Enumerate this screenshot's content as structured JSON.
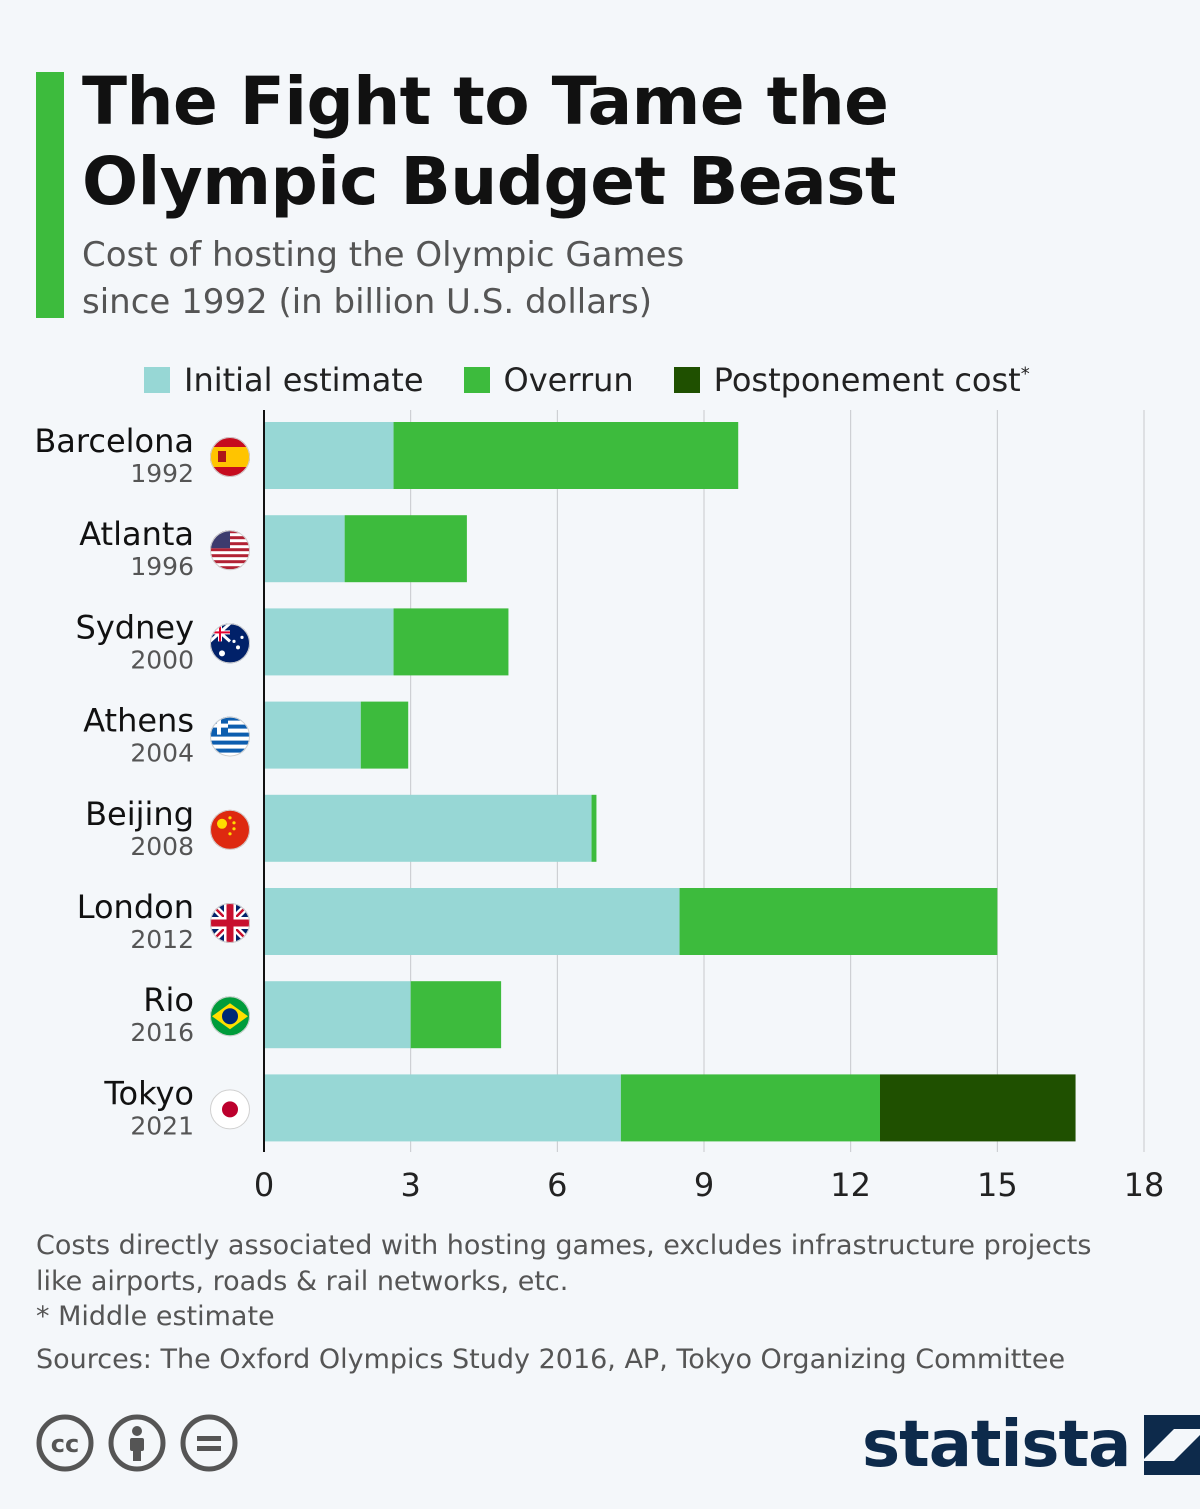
{
  "title": {
    "line1": "The Fight to Tame the",
    "line2": "Olympic Budget Beast"
  },
  "subtitle": {
    "line1": "Cost of hosting the Olympic Games",
    "line2": "since 1992 (in billion U.S. dollars)"
  },
  "colors": {
    "initial": "#97d7d5",
    "overrun": "#3dbb3d",
    "postponement": "#1f5000",
    "accent": "#3dbb3d",
    "brand": "#0d2a4b"
  },
  "legend": {
    "initial": "Initial estimate",
    "overrun": "Overrun",
    "postponement": "Postponement cost",
    "postponement_mark": "*"
  },
  "chart_data": {
    "type": "bar",
    "orientation": "horizontal",
    "stacked": true,
    "categories": [
      {
        "city": "Barcelona",
        "year": "1992",
        "flag": "spain-flag-icon"
      },
      {
        "city": "Atlanta",
        "year": "1996",
        "flag": "usa-flag-icon"
      },
      {
        "city": "Sydney",
        "year": "2000",
        "flag": "australia-flag-icon"
      },
      {
        "city": "Athens",
        "year": "2004",
        "flag": "greece-flag-icon"
      },
      {
        "city": "Beijing",
        "year": "2008",
        "flag": "china-flag-icon"
      },
      {
        "city": "London",
        "year": "2012",
        "flag": "uk-flag-icon"
      },
      {
        "city": "Rio",
        "year": "2016",
        "flag": "brazil-flag-icon"
      },
      {
        "city": "Tokyo",
        "year": "2021",
        "flag": "japan-flag-icon"
      }
    ],
    "series": [
      {
        "name": "Initial estimate",
        "key": "initial",
        "values": [
          2.65,
          1.65,
          2.65,
          1.98,
          6.7,
          8.5,
          3.0,
          7.3
        ]
      },
      {
        "name": "Overrun",
        "key": "overrun",
        "values": [
          7.05,
          2.5,
          2.35,
          0.97,
          0.1,
          6.5,
          1.85,
          5.3
        ]
      },
      {
        "name": "Postponement cost",
        "key": "postponement",
        "values": [
          0,
          0,
          0,
          0,
          0,
          0,
          0,
          4.0
        ]
      }
    ],
    "xlim": [
      0,
      18
    ],
    "xticks": [
      "0",
      "3",
      "6",
      "9",
      "12",
      "15",
      "18"
    ],
    "grid": true,
    "legend_position": "top"
  },
  "footnotes": {
    "line1": "Costs directly associated with hosting games, excludes infrastructure projects",
    "line2": "like airports, roads & rail networks, etc.",
    "line3": "* Middle estimate",
    "sources": "Sources: The Oxford Olympics Study 2016, AP, Tokyo Organizing Committee"
  },
  "branding": {
    "logo_text": "statista",
    "license_icons": [
      "cc-icon",
      "attribution-icon",
      "no-derivatives-icon"
    ]
  }
}
